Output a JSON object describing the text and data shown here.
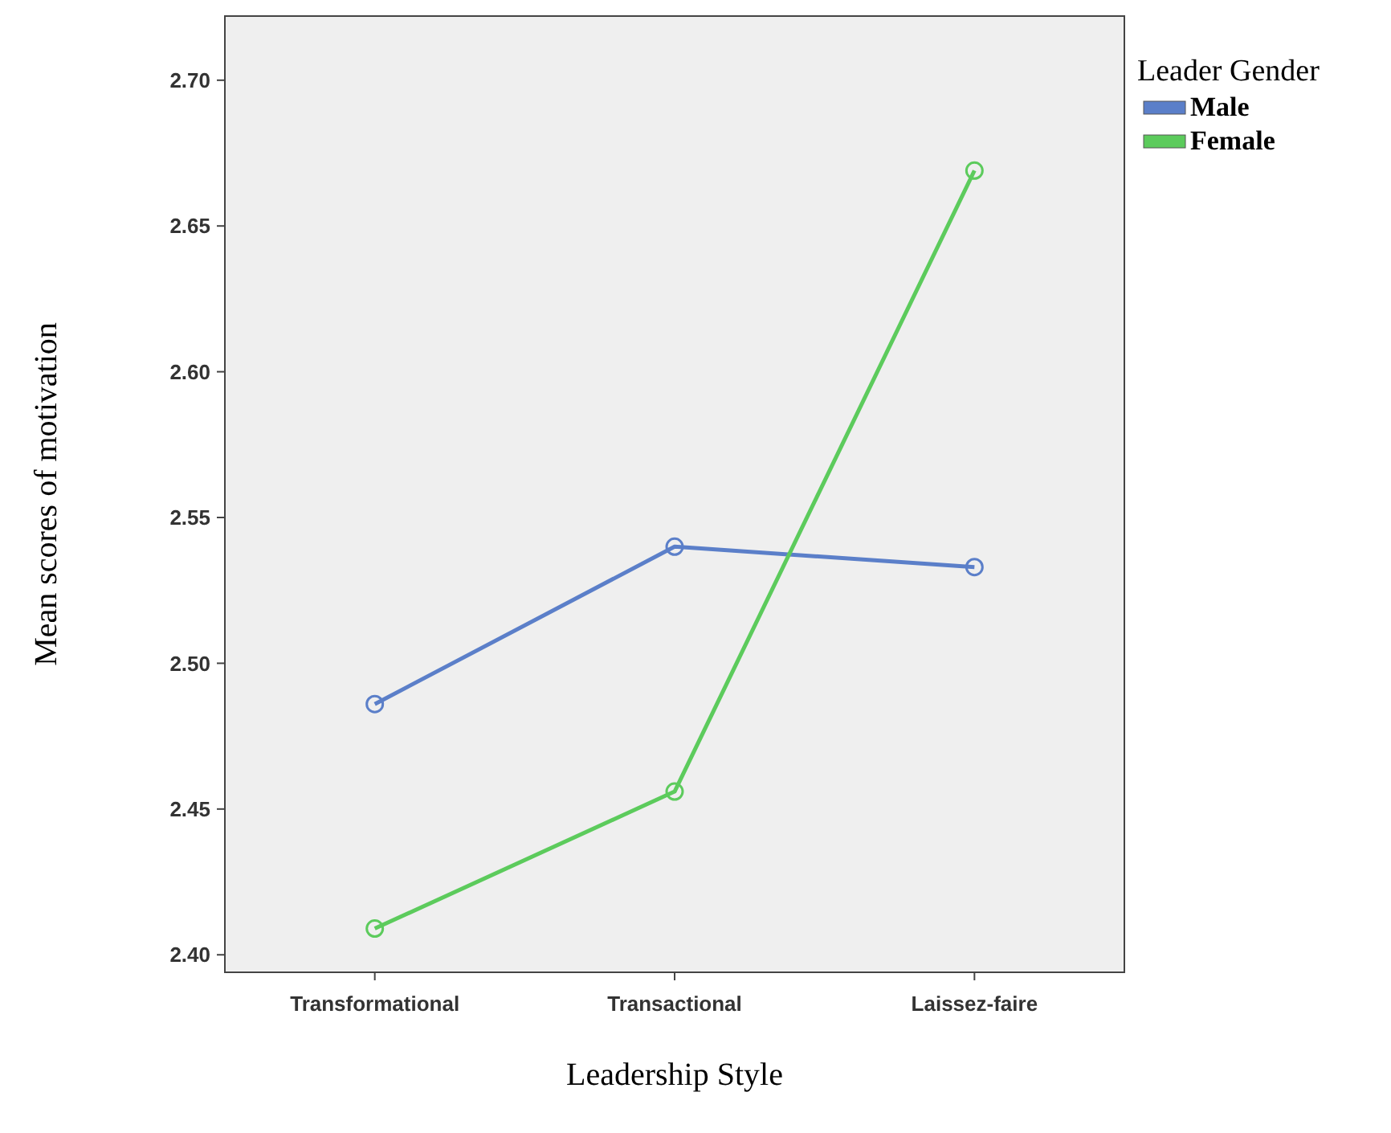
{
  "chart_data": {
    "type": "line",
    "xlabel": "Leadership Style",
    "ylabel": "Mean scores of motivation",
    "legend_title": "Leader Gender",
    "categories": [
      "Transformational",
      "Transactional",
      "Laissez-faire"
    ],
    "series": [
      {
        "name": "Male",
        "color": "#5b7fc9",
        "values": [
          2.486,
          2.54,
          2.533
        ]
      },
      {
        "name": "Female",
        "color": "#5ccb5c",
        "values": [
          2.409,
          2.456,
          2.669
        ]
      }
    ],
    "ylim": [
      2.394,
      2.722
    ],
    "yticks": [
      {
        "value": 2.4,
        "label": "2.40"
      },
      {
        "value": 2.45,
        "label": "2.45"
      },
      {
        "value": 2.5,
        "label": "2.50"
      },
      {
        "value": 2.55,
        "label": "2.55"
      },
      {
        "value": 2.6,
        "label": "2.60"
      },
      {
        "value": 2.65,
        "label": "2.65"
      },
      {
        "value": 2.7,
        "label": "2.70"
      }
    ],
    "marker": "circle",
    "line_style": "solid",
    "legend": "top right",
    "grid": false
  }
}
